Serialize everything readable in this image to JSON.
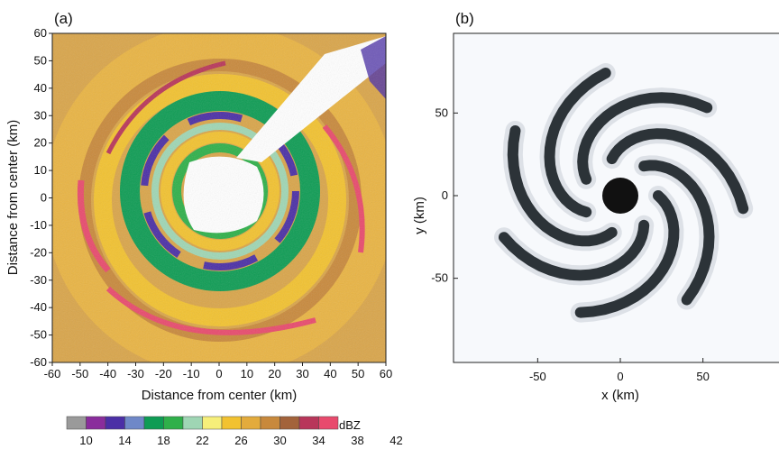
{
  "chart_data": [
    {
      "type": "heatmap",
      "panel_label": "(a)",
      "xlabel": "Distance from center (km)",
      "ylabel": "Distance from center (km)",
      "xlim": [
        -60,
        60
      ],
      "ylim": [
        -60,
        60
      ],
      "xticks": [
        -60,
        -50,
        -40,
        -30,
        -20,
        -10,
        0,
        10,
        20,
        30,
        40,
        50,
        60
      ],
      "yticks": [
        60,
        50,
        40,
        30,
        20,
        10,
        0,
        -10,
        -20,
        -30,
        -40,
        -50,
        -60
      ],
      "colorbar": {
        "unit": "dBZ",
        "tick_labels": [
          10,
          14,
          18,
          22,
          26,
          30,
          34,
          38,
          42
        ],
        "colors": [
          "#9a9a9a",
          "#8a2d9c",
          "#4b2fa6",
          "#6f88c8",
          "#0e9c54",
          "#2fb04a",
          "#9fd6b4",
          "#f6ef7a",
          "#f2c230",
          "#e3ab3c",
          "#c8893c",
          "#a3633b",
          "#b8365a",
          "#e84a6d"
        ]
      }
    },
    {
      "type": "heatmap",
      "panel_label": "(b)",
      "xlabel": "x (km)",
      "ylabel": "y (km)",
      "xticks": [
        -50,
        0,
        50
      ],
      "yticks": [
        50,
        0,
        -50
      ],
      "xlim": [
        -100,
        100
      ],
      "ylim": [
        -100,
        100
      ]
    }
  ]
}
